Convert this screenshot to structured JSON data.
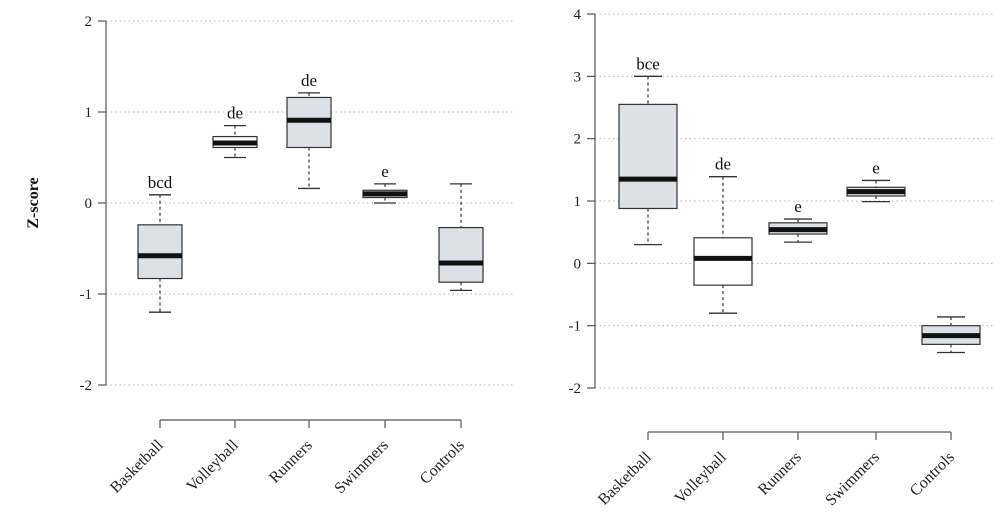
{
  "chart_data": [
    {
      "type": "boxplot",
      "ylabel": "Z-score",
      "ylim": [
        -2,
        2
      ],
      "yticks": [
        "-2",
        "-1",
        "0",
        "1",
        "2"
      ],
      "grid": "horizontal dotted",
      "categories": [
        "Basketball",
        "Volleyball",
        "Runners",
        "Swimmers",
        "Controls"
      ],
      "boxes": [
        {
          "label": "Basketball",
          "whisker_low": -1.2,
          "q1": -0.83,
          "median": -0.58,
          "q3": -0.24,
          "whisker_high": 0.09,
          "annotation": "bcd",
          "fill": "#dde1e7"
        },
        {
          "label": "Volleyball",
          "whisker_low": 0.5,
          "q1": 0.61,
          "median": 0.66,
          "q3": 0.73,
          "whisker_high": 0.85,
          "annotation": "de",
          "fill": "#ffffff"
        },
        {
          "label": "Runners",
          "whisker_low": 0.16,
          "q1": 0.61,
          "median": 0.91,
          "q3": 1.16,
          "whisker_high": 1.21,
          "annotation": "de",
          "fill": "#dde1e7"
        },
        {
          "label": "Swimmers",
          "whisker_low": 0.0,
          "q1": 0.06,
          "median": 0.1,
          "q3": 0.14,
          "whisker_high": 0.21,
          "annotation": "e",
          "fill": "#dde1e7"
        },
        {
          "label": "Controls",
          "whisker_low": -0.96,
          "q1": -0.87,
          "median": -0.66,
          "q3": -0.27,
          "whisker_high": 0.21,
          "annotation": "",
          "fill": "#dde1e7"
        }
      ]
    },
    {
      "type": "boxplot",
      "ylabel": "",
      "ylim": [
        -2,
        4
      ],
      "yticks": [
        "-2",
        "-1",
        "0",
        "1",
        "2",
        "3",
        "4"
      ],
      "grid": "horizontal dotted",
      "categories": [
        "Basketball",
        "Volleyball",
        "Runners",
        "Swimmers",
        "Controls"
      ],
      "boxes": [
        {
          "label": "Basketball",
          "whisker_low": 0.3,
          "q1": 0.88,
          "median": 1.35,
          "q3": 2.55,
          "whisker_high": 3.0,
          "annotation": "bce",
          "fill": "#dde1e7"
        },
        {
          "label": "Volleyball",
          "whisker_low": -0.8,
          "q1": -0.35,
          "median": 0.08,
          "q3": 0.41,
          "whisker_high": 1.39,
          "annotation": "de",
          "fill": "#ffffff"
        },
        {
          "label": "Runners",
          "whisker_low": 0.34,
          "q1": 0.47,
          "median": 0.54,
          "q3": 0.65,
          "whisker_high": 0.71,
          "annotation": "e",
          "fill": "#dde1e7"
        },
        {
          "label": "Swimmers",
          "whisker_low": 0.99,
          "q1": 1.08,
          "median": 1.15,
          "q3": 1.22,
          "whisker_high": 1.33,
          "annotation": "e",
          "fill": "#dde1e7"
        },
        {
          "label": "Controls",
          "whisker_low": -1.43,
          "q1": -1.3,
          "median": -1.16,
          "q3": -1.0,
          "whisker_high": -0.86,
          "annotation": "",
          "fill": "#dde1e7"
        }
      ]
    }
  ],
  "colors": {
    "axis": "#555555",
    "grid": "#b8b8b8",
    "box_stroke": "#333333",
    "median": "#111111",
    "whisker": "#333333"
  }
}
